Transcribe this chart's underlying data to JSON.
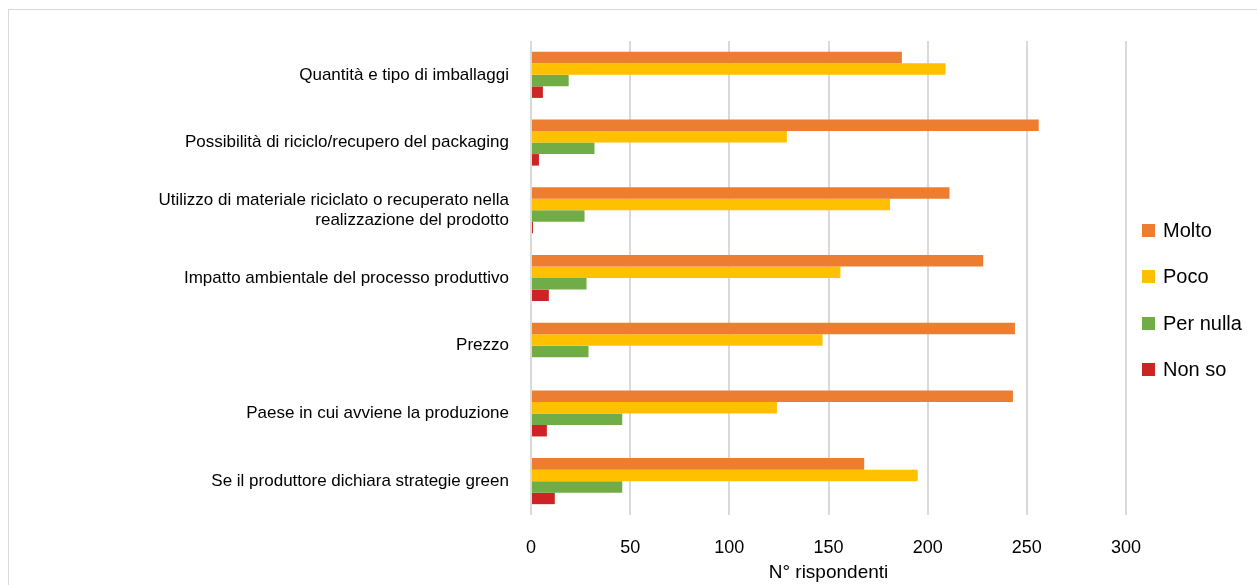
{
  "chart_data": {
    "type": "bar",
    "orientation": "horizontal",
    "categories": [
      "Quantità e tipo di imballaggi",
      "Possibilità di riciclo/recupero del packaging",
      "Utilizzo di materiale riciclato o recuperato nella realizzazione del prodotto",
      "Impatto ambientale del processo produttivo",
      "Prezzo",
      "Paese in cui avviene la produzione",
      "Se il produttore dichiara strategie green"
    ],
    "series": [
      {
        "name": "Molto",
        "color": "#ed7d31",
        "values": [
          187,
          256,
          211,
          228,
          244,
          243,
          168
        ]
      },
      {
        "name": "Poco",
        "color": "#ffc000",
        "values": [
          209,
          129,
          181,
          156,
          147,
          124,
          195
        ]
      },
      {
        "name": "Per nulla",
        "color": "#70ad47",
        "values": [
          19,
          32,
          27,
          28,
          29,
          46,
          46
        ]
      },
      {
        "name": "Non so",
        "color": "#cc2424",
        "values": [
          6,
          4,
          1,
          9,
          0,
          8,
          12
        ]
      }
    ],
    "xlabel": "N° rispondenti",
    "xlim": [
      0,
      300
    ],
    "xticks": [
      0,
      50,
      100,
      150,
      200,
      250,
      300
    ],
    "grid": "x",
    "legend": "right"
  }
}
